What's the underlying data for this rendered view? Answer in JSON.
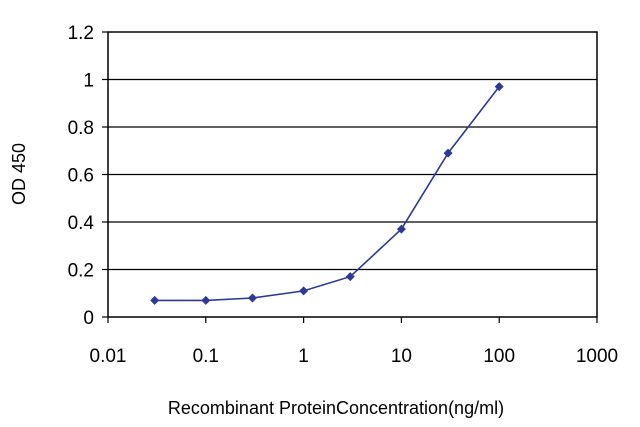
{
  "chart_data": {
    "type": "line",
    "xlabel": "Recombinant ProteinConcentration(ng/ml)",
    "ylabel": "OD 450",
    "x_scale": "log",
    "xlim": [
      0.01,
      1000
    ],
    "ylim": [
      0,
      1.2
    ],
    "x_ticks": [
      "0.01",
      "0.1",
      "1",
      "10",
      "100",
      "1000"
    ],
    "y_ticks": [
      "0",
      "0.2",
      "0.4",
      "0.6",
      "0.8",
      "1",
      "1.2"
    ],
    "grid": "horizontal",
    "legend": "none",
    "series": [
      {
        "color": "#2b3a9a",
        "marker": "diamond",
        "x": [
          0.03,
          0.1,
          0.3,
          1,
          3,
          10,
          30,
          100
        ],
        "y": [
          0.07,
          0.07,
          0.08,
          0.11,
          0.17,
          0.37,
          0.69,
          0.97
        ]
      }
    ]
  }
}
